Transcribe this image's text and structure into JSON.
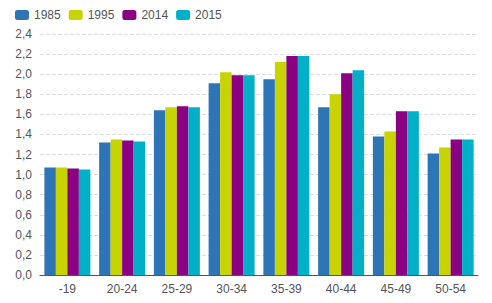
{
  "chart_data": {
    "type": "bar",
    "categories": [
      "-19",
      "20-24",
      "25-29",
      "30-34",
      "35-39",
      "40-44",
      "45-49",
      "50-54"
    ],
    "series": [
      {
        "name": "1985",
        "color": "#2E75B6",
        "values": [
          1.07,
          1.32,
          1.64,
          1.91,
          1.95,
          1.67,
          1.38,
          1.21
        ]
      },
      {
        "name": "1995",
        "color": "#C8D400",
        "values": [
          1.07,
          1.35,
          1.67,
          2.02,
          2.12,
          1.8,
          1.43,
          1.27
        ]
      },
      {
        "name": "2014",
        "color": "#8B0082",
        "values": [
          1.06,
          1.34,
          1.68,
          1.99,
          2.18,
          2.01,
          1.63,
          1.35
        ]
      },
      {
        "name": "2015",
        "color": "#00B0C8",
        "values": [
          1.05,
          1.33,
          1.67,
          1.99,
          2.18,
          2.04,
          1.63,
          1.35
        ]
      }
    ],
    "ylim": [
      0,
      2.4
    ],
    "yticks": [
      {
        "value": 0.0,
        "label": "0,0"
      },
      {
        "value": 0.2,
        "label": "0,2"
      },
      {
        "value": 0.4,
        "label": "0,4"
      },
      {
        "value": 0.6,
        "label": "0,6"
      },
      {
        "value": 0.8,
        "label": "0,8"
      },
      {
        "value": 1.0,
        "label": "1,0"
      },
      {
        "value": 1.2,
        "label": "1,2"
      },
      {
        "value": 1.4,
        "label": "1,4"
      },
      {
        "value": 1.6,
        "label": "1,6"
      },
      {
        "value": 1.8,
        "label": "1,8"
      },
      {
        "value": 2.0,
        "label": "2,0"
      },
      {
        "value": 2.2,
        "label": "2,2"
      },
      {
        "value": 2.4,
        "label": "2,4"
      }
    ],
    "grid": true,
    "legend": "upper left"
  }
}
